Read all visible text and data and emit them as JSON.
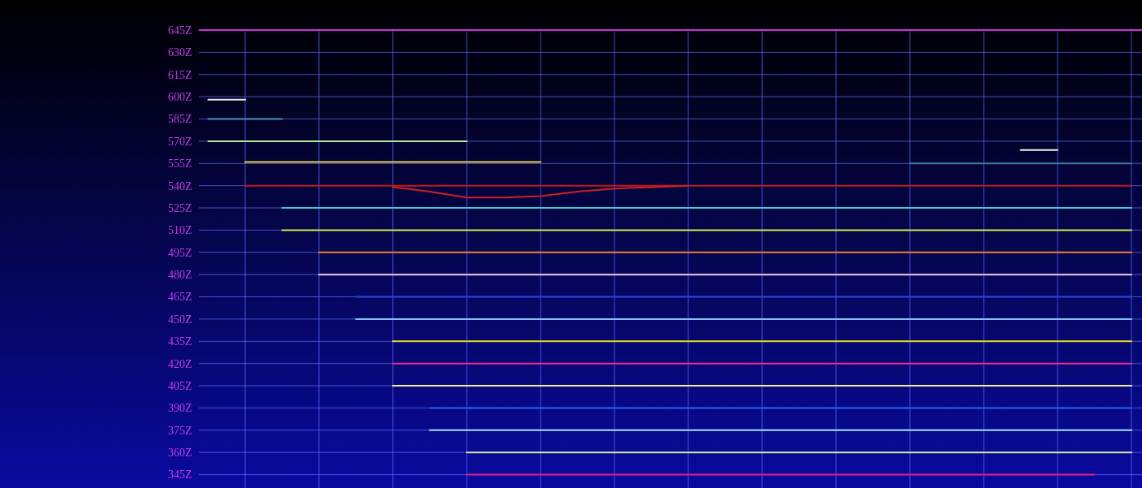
{
  "chart_data": {
    "type": "line",
    "categories": [
      null,
      null,
      null,
      null,
      null,
      null,
      null,
      null,
      null,
      null,
      null,
      null,
      null,
      null,
      null,
      null,
      null,
      null,
      null,
      null,
      null,
      null,
      null,
      null,
      null,
      null,
      null
    ],
    "ylim": [
      336,
      645
    ],
    "yticks": [
      {
        "value": 645,
        "label": "645Z"
      },
      {
        "value": 630,
        "label": "630Z"
      },
      {
        "value": 615,
        "label": "615Z"
      },
      {
        "value": 600,
        "label": "600Z"
      },
      {
        "value": 585,
        "label": "585Z"
      },
      {
        "value": 570,
        "label": "570Z"
      },
      {
        "value": 555,
        "label": "555Z"
      },
      {
        "value": 540,
        "label": "540Z"
      },
      {
        "value": 525,
        "label": "525Z"
      },
      {
        "value": 510,
        "label": "510Z"
      },
      {
        "value": 495,
        "label": "495Z"
      },
      {
        "value": 480,
        "label": "480Z"
      },
      {
        "value": 465,
        "label": "465Z"
      },
      {
        "value": 450,
        "label": "450Z"
      },
      {
        "value": 435,
        "label": "435Z"
      },
      {
        "value": 420,
        "label": "420Z"
      },
      {
        "value": 405,
        "label": "405Z"
      },
      {
        "value": 390,
        "label": "390Z"
      },
      {
        "value": 375,
        "label": "375Z"
      },
      {
        "value": 360,
        "label": "360Z"
      },
      {
        "value": 345,
        "label": "345Z"
      }
    ],
    "grid": true,
    "marker": "none",
    "line_style": "solid",
    "series": [
      {
        "color": "#e8e8e8",
        "values": [
          null,
          598,
          598,
          null,
          null,
          null,
          null,
          null,
          null,
          null,
          null,
          null,
          null,
          null,
          null,
          null,
          null,
          null,
          null,
          null,
          null,
          null,
          null,
          null,
          null,
          null,
          null
        ]
      },
      {
        "color": "#4a8fb8",
        "values": [
          null,
          585,
          585,
          585,
          null,
          null,
          null,
          null,
          null,
          null,
          null,
          null,
          null,
          null,
          null,
          null,
          null,
          null,
          null,
          null,
          null,
          null,
          null,
          null,
          null,
          null,
          null
        ]
      },
      {
        "color": "#a8f0a0",
        "values": [
          null,
          570,
          570,
          570,
          570,
          570,
          570,
          570,
          570,
          null,
          null,
          null,
          null,
          null,
          null,
          null,
          null,
          null,
          null,
          null,
          null,
          null,
          null,
          null,
          null,
          null,
          null
        ]
      },
      {
        "color": "#e8d040",
        "values": [
          null,
          null,
          556,
          556,
          556,
          556,
          556,
          556,
          556,
          556,
          556,
          null,
          null,
          null,
          null,
          null,
          null,
          null,
          null,
          null,
          null,
          null,
          null,
          null,
          null,
          null,
          null
        ]
      },
      {
        "color": "#c01818",
        "values": [
          null,
          null,
          540,
          540,
          540,
          540,
          540,
          540,
          540,
          540,
          540,
          540,
          540,
          540,
          540,
          540,
          540,
          540,
          540,
          540,
          540,
          540,
          540,
          540,
          540,
          540,
          540
        ]
      },
      {
        "color": "#d02020",
        "values": [
          null,
          null,
          null,
          null,
          null,
          null,
          539,
          536,
          532,
          532,
          533,
          536,
          538,
          539,
          540,
          null,
          null,
          null,
          null,
          null,
          null,
          null,
          null,
          null,
          null,
          null,
          null
        ]
      },
      {
        "color": "#40c8d8",
        "values": [
          null,
          null,
          null,
          525,
          525,
          525,
          525,
          525,
          525,
          525,
          525,
          525,
          525,
          525,
          525,
          525,
          525,
          525,
          525,
          525,
          525,
          525,
          525,
          525,
          525,
          525,
          525
        ]
      },
      {
        "color": "#c8f040",
        "values": [
          null,
          null,
          null,
          510,
          510,
          510,
          510,
          510,
          510,
          510,
          510,
          510,
          510,
          510,
          510,
          510,
          510,
          510,
          510,
          510,
          510,
          510,
          510,
          510,
          510,
          510,
          510
        ]
      },
      {
        "color": "#f08020",
        "values": [
          null,
          null,
          null,
          null,
          495,
          495,
          495,
          495,
          495,
          495,
          495,
          495,
          495,
          495,
          495,
          495,
          495,
          495,
          495,
          495,
          495,
          495,
          495,
          495,
          495,
          495,
          495
        ]
      },
      {
        "color": "#f0c8e0",
        "values": [
          null,
          null,
          null,
          null,
          480,
          480,
          480,
          480,
          480,
          480,
          480,
          480,
          480,
          480,
          480,
          480,
          480,
          480,
          480,
          480,
          480,
          480,
          480,
          480,
          480,
          480,
          480
        ]
      },
      {
        "color": "#2848e0",
        "values": [
          null,
          null,
          null,
          null,
          null,
          465,
          465,
          465,
          465,
          465,
          465,
          465,
          465,
          465,
          465,
          465,
          465,
          465,
          465,
          465,
          465,
          465,
          465,
          465,
          465,
          465,
          465
        ]
      },
      {
        "color": "#80c0f0",
        "values": [
          null,
          null,
          null,
          null,
          null,
          450,
          450,
          450,
          450,
          450,
          450,
          450,
          450,
          450,
          450,
          450,
          450,
          450,
          450,
          450,
          450,
          450,
          450,
          450,
          450,
          450,
          450
        ]
      },
      {
        "color": "#e0e020",
        "values": [
          null,
          null,
          null,
          null,
          null,
          null,
          435,
          435,
          435,
          435,
          435,
          435,
          435,
          435,
          435,
          435,
          435,
          435,
          435,
          435,
          435,
          435,
          435,
          435,
          435,
          435,
          435
        ]
      },
      {
        "color": "#f02890",
        "values": [
          null,
          null,
          null,
          null,
          null,
          null,
          420,
          420,
          420,
          420,
          420,
          420,
          420,
          420,
          420,
          420,
          420,
          420,
          420,
          420,
          420,
          420,
          420,
          420,
          420,
          420,
          420
        ]
      },
      {
        "color": "#f0f0a0",
        "values": [
          null,
          null,
          null,
          null,
          null,
          null,
          405,
          405,
          405,
          405,
          405,
          405,
          405,
          405,
          405,
          405,
          405,
          405,
          405,
          405,
          405,
          405,
          405,
          405,
          405,
          405,
          405
        ]
      },
      {
        "color": "#2860e8",
        "values": [
          null,
          null,
          null,
          null,
          null,
          null,
          null,
          390,
          390,
          390,
          390,
          390,
          390,
          390,
          390,
          390,
          390,
          390,
          390,
          390,
          390,
          390,
          390,
          390,
          390,
          390,
          390
        ]
      },
      {
        "color": "#a0e0f0",
        "values": [
          null,
          null,
          null,
          null,
          null,
          null,
          null,
          375,
          375,
          375,
          375,
          375,
          375,
          375,
          375,
          375,
          375,
          375,
          375,
          375,
          375,
          375,
          375,
          375,
          375,
          375,
          375
        ]
      },
      {
        "color": "#d0f0a0",
        "values": [
          null,
          null,
          null,
          null,
          null,
          null,
          null,
          null,
          360,
          360,
          360,
          360,
          360,
          360,
          360,
          360,
          360,
          360,
          360,
          360,
          360,
          360,
          360,
          360,
          360,
          360,
          360
        ]
      },
      {
        "color": "#e02080",
        "values": [
          null,
          null,
          null,
          null,
          null,
          null,
          null,
          null,
          345,
          345,
          345,
          345,
          345,
          345,
          345,
          345,
          345,
          345,
          345,
          345,
          345,
          345,
          345,
          345,
          345,
          345,
          null
        ]
      },
      {
        "color": "#f0f0f0",
        "values": [
          null,
          null,
          null,
          null,
          null,
          null,
          null,
          null,
          null,
          null,
          null,
          null,
          null,
          null,
          null,
          null,
          null,
          null,
          null,
          null,
          null,
          null,
          null,
          564,
          564,
          null,
          null
        ]
      },
      {
        "color": "#3878a8",
        "values": [
          null,
          null,
          null,
          null,
          null,
          null,
          null,
          null,
          null,
          null,
          null,
          null,
          null,
          null,
          null,
          null,
          null,
          null,
          null,
          null,
          555,
          555,
          555,
          555,
          555,
          555,
          555
        ]
      }
    ]
  }
}
